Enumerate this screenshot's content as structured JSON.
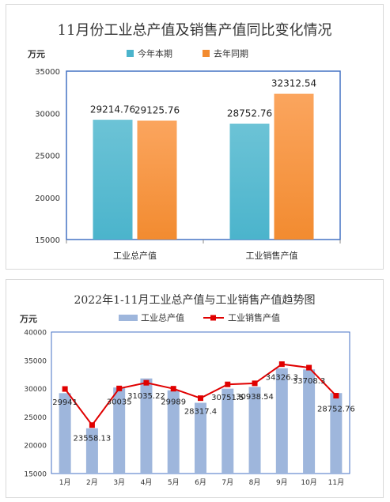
{
  "chart_data": [
    {
      "type": "bar",
      "title": "11月份工业总产值及销售产值同比变化情况",
      "ylabel": "万元",
      "categories": [
        "工业总产值",
        "工业销售产值"
      ],
      "series": [
        {
          "name": "今年本期",
          "values": [
            29214.76,
            28752.76
          ],
          "color": "#4bb4cc",
          "color_top": "#6cc3d6",
          "labels": [
            "29214.76",
            "28752.76"
          ]
        },
        {
          "name": "去年同期",
          "values": [
            29125.76,
            32312.54
          ],
          "color": "#f28b30",
          "color_top": "#fba55e",
          "labels": [
            "29125.76",
            "32312.54"
          ]
        }
      ],
      "ylim": [
        15000,
        35000
      ],
      "yticks": [
        15000,
        20000,
        25000,
        30000,
        35000
      ],
      "ytick_labels": [
        "15000",
        "20000",
        "25000",
        "30000",
        "35000"
      ],
      "legend_position": "top",
      "plot_border_color": "#4472c4",
      "grid": false
    },
    {
      "type": "bar+line",
      "title": "2022年1-11月工业总产值与工业销售产值趋势图",
      "ylabel": "万元",
      "categories": [
        "1月",
        "2月",
        "3月",
        "4月",
        "5月",
        "6月",
        "7月",
        "8月",
        "9月",
        "10月",
        "11月"
      ],
      "series": [
        {
          "name": "工业总产值",
          "type": "bar",
          "color": "#9eb6dc",
          "values": [
            29200,
            23000,
            30200,
            31800,
            29700,
            27500,
            30000,
            30300,
            33600,
            33400,
            29214.76
          ]
        },
        {
          "name": "工业销售产值",
          "type": "line",
          "color": "#e00000",
          "values": [
            29941,
            23558.13,
            30035,
            31035.22,
            29989,
            28317.4,
            30751.5,
            30938.54,
            34326.3,
            33708.3,
            28752.76
          ],
          "labels": [
            "29941",
            "23558.13",
            "30035",
            "31035.22",
            "29989",
            "28317.4",
            "30751.5",
            "30938.54",
            "34326.3",
            "33708.3",
            "28752.76"
          ]
        }
      ],
      "ylim": [
        15000,
        40000
      ],
      "yticks": [
        15000,
        20000,
        25000,
        30000,
        35000,
        40000
      ],
      "ytick_labels": [
        "15000",
        "20000",
        "25000",
        "30000",
        "35000",
        "40000"
      ],
      "legend_position": "top",
      "plot_border_color": "#4472c4",
      "grid": false
    }
  ]
}
